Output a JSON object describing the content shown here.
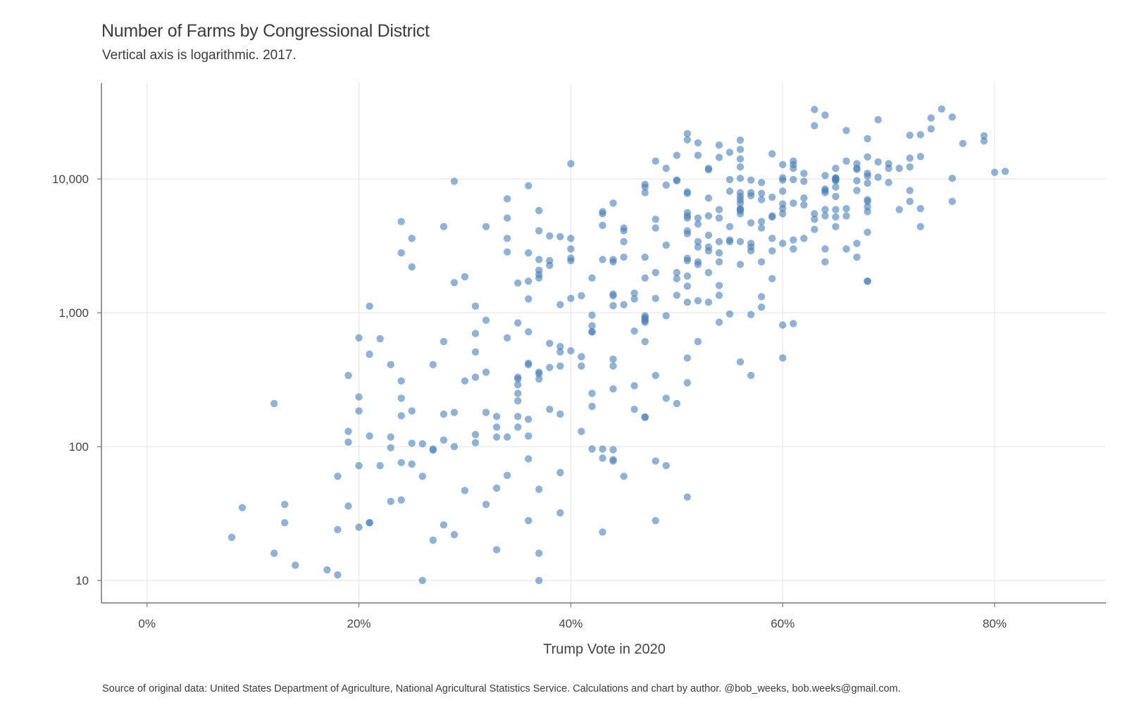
{
  "chart_data": {
    "type": "scatter",
    "title": "Number of Farms by Congressional District",
    "subtitle": "Vertical axis is logarithmic. 2017.",
    "xlabel": "Trump Vote in 2020",
    "ylabel": "",
    "caption": "Source of original data: United States Department of Agriculture, National Agricultural Statistics Service. Calculations and chart by author. @bob_weeks, bob.weeks@gmail.com.",
    "x_scale": "linear",
    "y_scale": "log",
    "xlim": [
      -0.043,
      0.905
    ],
    "ylim": [
      6.8,
      52000
    ],
    "x_ticks": [
      0,
      0.2,
      0.4,
      0.6,
      0.8
    ],
    "x_tick_labels": [
      "0%",
      "20%",
      "40%",
      "60%",
      "80%"
    ],
    "y_ticks": [
      10,
      100,
      1000,
      10000
    ],
    "y_tick_labels": [
      "10",
      "100",
      "1,000",
      "10,000"
    ],
    "grid": true,
    "legend": "none",
    "point_color": "#4a7fb5",
    "points": [
      [
        0.08,
        21
      ],
      [
        0.09,
        35
      ],
      [
        0.12,
        16
      ],
      [
        0.12,
        210
      ],
      [
        0.13,
        37
      ],
      [
        0.13,
        27
      ],
      [
        0.14,
        13
      ],
      [
        0.17,
        12
      ],
      [
        0.18,
        11
      ],
      [
        0.18,
        24
      ],
      [
        0.18,
        60
      ],
      [
        0.19,
        340
      ],
      [
        0.19,
        130
      ],
      [
        0.19,
        108
      ],
      [
        0.19,
        36
      ],
      [
        0.2,
        25
      ],
      [
        0.2,
        185
      ],
      [
        0.2,
        650
      ],
      [
        0.2,
        72
      ],
      [
        0.2,
        235
      ],
      [
        0.21,
        120
      ],
      [
        0.21,
        27
      ],
      [
        0.21,
        27
      ],
      [
        0.21,
        1120
      ],
      [
        0.21,
        490
      ],
      [
        0.22,
        640
      ],
      [
        0.22,
        72
      ],
      [
        0.23,
        39
      ],
      [
        0.23,
        410
      ],
      [
        0.23,
        118
      ],
      [
        0.23,
        98
      ],
      [
        0.24,
        310
      ],
      [
        0.24,
        230
      ],
      [
        0.24,
        2800
      ],
      [
        0.24,
        4800
      ],
      [
        0.24,
        76
      ],
      [
        0.24,
        170
      ],
      [
        0.24,
        40
      ],
      [
        0.25,
        185
      ],
      [
        0.25,
        74
      ],
      [
        0.25,
        106
      ],
      [
        0.25,
        2200
      ],
      [
        0.25,
        3600
      ],
      [
        0.26,
        60
      ],
      [
        0.26,
        105
      ],
      [
        0.26,
        10
      ],
      [
        0.27,
        410
      ],
      [
        0.27,
        94
      ],
      [
        0.27,
        96
      ],
      [
        0.27,
        20
      ],
      [
        0.28,
        610
      ],
      [
        0.28,
        26
      ],
      [
        0.28,
        112
      ],
      [
        0.28,
        175
      ],
      [
        0.28,
        4400
      ],
      [
        0.29,
        22
      ],
      [
        0.29,
        100
      ],
      [
        0.29,
        1680
      ],
      [
        0.29,
        9600
      ],
      [
        0.29,
        180
      ],
      [
        0.3,
        47
      ],
      [
        0.3,
        1860
      ],
      [
        0.3,
        310
      ],
      [
        0.31,
        1120
      ],
      [
        0.31,
        700
      ],
      [
        0.31,
        107
      ],
      [
        0.31,
        123
      ],
      [
        0.31,
        330
      ],
      [
        0.31,
        510
      ],
      [
        0.32,
        4400
      ],
      [
        0.32,
        360
      ],
      [
        0.32,
        180
      ],
      [
        0.32,
        880
      ],
      [
        0.32,
        37
      ],
      [
        0.33,
        168
      ],
      [
        0.33,
        118
      ],
      [
        0.33,
        49
      ],
      [
        0.33,
        140
      ],
      [
        0.33,
        17
      ],
      [
        0.34,
        650
      ],
      [
        0.34,
        3600
      ],
      [
        0.34,
        7100
      ],
      [
        0.34,
        2850
      ],
      [
        0.34,
        5100
      ],
      [
        0.34,
        61
      ],
      [
        0.34,
        118
      ],
      [
        0.35,
        220
      ],
      [
        0.35,
        330
      ],
      [
        0.35,
        320
      ],
      [
        0.35,
        250
      ],
      [
        0.35,
        840
      ],
      [
        0.35,
        168
      ],
      [
        0.35,
        140
      ],
      [
        0.35,
        290
      ],
      [
        0.35,
        1670
      ],
      [
        0.36,
        8900
      ],
      [
        0.36,
        720
      ],
      [
        0.36,
        160
      ],
      [
        0.36,
        28
      ],
      [
        0.36,
        1270
      ],
      [
        0.36,
        81
      ],
      [
        0.36,
        420
      ],
      [
        0.36,
        1720
      ],
      [
        0.36,
        410
      ],
      [
        0.36,
        2800
      ],
      [
        0.36,
        120
      ],
      [
        0.37,
        16
      ],
      [
        0.37,
        320
      ],
      [
        0.37,
        1820
      ],
      [
        0.37,
        2080
      ],
      [
        0.37,
        1930
      ],
      [
        0.37,
        4100
      ],
      [
        0.37,
        350
      ],
      [
        0.37,
        10
      ],
      [
        0.37,
        2500
      ],
      [
        0.37,
        5800
      ],
      [
        0.37,
        360
      ],
      [
        0.37,
        48
      ],
      [
        0.38,
        590
      ],
      [
        0.38,
        2260
      ],
      [
        0.38,
        2450
      ],
      [
        0.38,
        390
      ],
      [
        0.38,
        3750
      ],
      [
        0.38,
        190
      ],
      [
        0.39,
        1150
      ],
      [
        0.39,
        3700
      ],
      [
        0.39,
        560
      ],
      [
        0.39,
        175
      ],
      [
        0.39,
        32
      ],
      [
        0.39,
        400
      ],
      [
        0.39,
        64
      ],
      [
        0.39,
        510
      ],
      [
        0.4,
        2560
      ],
      [
        0.4,
        3600
      ],
      [
        0.4,
        2450
      ],
      [
        0.4,
        520
      ],
      [
        0.4,
        3000
      ],
      [
        0.4,
        13000
      ],
      [
        0.4,
        1280
      ],
      [
        0.41,
        1340
      ],
      [
        0.41,
        470
      ],
      [
        0.41,
        400
      ],
      [
        0.41,
        130
      ],
      [
        0.42,
        250
      ],
      [
        0.42,
        1820
      ],
      [
        0.42,
        720
      ],
      [
        0.42,
        960
      ],
      [
        0.42,
        800
      ],
      [
        0.42,
        720
      ],
      [
        0.42,
        96
      ],
      [
        0.42,
        200
      ],
      [
        0.43,
        23
      ],
      [
        0.43,
        5700
      ],
      [
        0.43,
        96
      ],
      [
        0.43,
        82
      ],
      [
        0.43,
        5500
      ],
      [
        0.43,
        4500
      ],
      [
        0.43,
        2500
      ],
      [
        0.44,
        6600
      ],
      [
        0.44,
        1380
      ],
      [
        0.44,
        1340
      ],
      [
        0.44,
        1130
      ],
      [
        0.44,
        400
      ],
      [
        0.44,
        270
      ],
      [
        0.44,
        95
      ],
      [
        0.44,
        80
      ],
      [
        0.44,
        450
      ],
      [
        0.44,
        2400
      ],
      [
        0.44,
        2500
      ],
      [
        0.44,
        78
      ],
      [
        0.45,
        2600
      ],
      [
        0.45,
        1150
      ],
      [
        0.45,
        60
      ],
      [
        0.45,
        3400
      ],
      [
        0.45,
        4100
      ],
      [
        0.45,
        4300
      ],
      [
        0.46,
        730
      ],
      [
        0.46,
        285
      ],
      [
        0.46,
        190
      ],
      [
        0.46,
        1270
      ],
      [
        0.46,
        1400
      ],
      [
        0.47,
        870
      ],
      [
        0.47,
        920
      ],
      [
        0.47,
        850
      ],
      [
        0.47,
        1820
      ],
      [
        0.47,
        9100
      ],
      [
        0.47,
        610
      ],
      [
        0.47,
        165
      ],
      [
        0.47,
        167
      ],
      [
        0.47,
        900
      ],
      [
        0.47,
        950
      ],
      [
        0.47,
        2600
      ],
      [
        0.47,
        7900
      ],
      [
        0.47,
        8700
      ],
      [
        0.48,
        4300
      ],
      [
        0.48,
        1280
      ],
      [
        0.48,
        78
      ],
      [
        0.48,
        2000
      ],
      [
        0.48,
        340
      ],
      [
        0.48,
        28
      ],
      [
        0.48,
        5000
      ],
      [
        0.48,
        13600
      ],
      [
        0.49,
        9000
      ],
      [
        0.49,
        3200
      ],
      [
        0.49,
        72
      ],
      [
        0.49,
        230
      ],
      [
        0.49,
        12000
      ],
      [
        0.49,
        950
      ],
      [
        0.5,
        210
      ],
      [
        0.5,
        2000
      ],
      [
        0.5,
        1800
      ],
      [
        0.5,
        1350
      ],
      [
        0.5,
        15000
      ],
      [
        0.5,
        9700
      ],
      [
        0.5,
        9800
      ],
      [
        0.51,
        2550
      ],
      [
        0.51,
        7800
      ],
      [
        0.51,
        8000
      ],
      [
        0.51,
        21800
      ],
      [
        0.51,
        5600
      ],
      [
        0.51,
        5100
      ],
      [
        0.51,
        3900
      ],
      [
        0.51,
        1200
      ],
      [
        0.51,
        1580
      ],
      [
        0.51,
        2450
      ],
      [
        0.51,
        19600
      ],
      [
        0.51,
        5300
      ],
      [
        0.51,
        4100
      ],
      [
        0.51,
        1880
      ],
      [
        0.51,
        42
      ],
      [
        0.51,
        300
      ],
      [
        0.51,
        460
      ],
      [
        0.52,
        15000
      ],
      [
        0.52,
        18600
      ],
      [
        0.52,
        3100
      ],
      [
        0.52,
        3400
      ],
      [
        0.52,
        1230
      ],
      [
        0.52,
        610
      ],
      [
        0.52,
        4600
      ],
      [
        0.52,
        2300
      ],
      [
        0.52,
        2400
      ],
      [
        0.52,
        5100
      ],
      [
        0.53,
        12000
      ],
      [
        0.53,
        11700
      ],
      [
        0.53,
        5300
      ],
      [
        0.53,
        3100
      ],
      [
        0.53,
        2900
      ],
      [
        0.53,
        1200
      ],
      [
        0.53,
        3800
      ],
      [
        0.53,
        7200
      ],
      [
        0.53,
        2000
      ],
      [
        0.54,
        2400
      ],
      [
        0.54,
        1600
      ],
      [
        0.54,
        1350
      ],
      [
        0.54,
        3400
      ],
      [
        0.54,
        2800
      ],
      [
        0.54,
        17900
      ],
      [
        0.54,
        14500
      ],
      [
        0.54,
        5900
      ],
      [
        0.54,
        5100
      ],
      [
        0.54,
        850
      ],
      [
        0.55,
        15800
      ],
      [
        0.55,
        9900
      ],
      [
        0.55,
        4400
      ],
      [
        0.55,
        3400
      ],
      [
        0.55,
        3500
      ],
      [
        0.55,
        980
      ],
      [
        0.55,
        8100
      ],
      [
        0.56,
        14100
      ],
      [
        0.56,
        5800
      ],
      [
        0.56,
        5900
      ],
      [
        0.56,
        2300
      ],
      [
        0.56,
        6000
      ],
      [
        0.56,
        5500
      ],
      [
        0.56,
        6600
      ],
      [
        0.56,
        7000
      ],
      [
        0.56,
        19500
      ],
      [
        0.56,
        10100
      ],
      [
        0.56,
        12300
      ],
      [
        0.56,
        3400
      ],
      [
        0.56,
        7900
      ],
      [
        0.56,
        430
      ],
      [
        0.56,
        7400
      ],
      [
        0.56,
        16600
      ],
      [
        0.57,
        3300
      ],
      [
        0.57,
        7900
      ],
      [
        0.57,
        9800
      ],
      [
        0.57,
        7500
      ],
      [
        0.57,
        4700
      ],
      [
        0.57,
        3100
      ],
      [
        0.57,
        970
      ],
      [
        0.57,
        2900
      ],
      [
        0.57,
        340
      ],
      [
        0.58,
        7800
      ],
      [
        0.58,
        4800
      ],
      [
        0.58,
        9400
      ],
      [
        0.58,
        7000
      ],
      [
        0.58,
        1320
      ],
      [
        0.58,
        4300
      ],
      [
        0.58,
        1100
      ],
      [
        0.58,
        2400
      ],
      [
        0.59,
        5300
      ],
      [
        0.59,
        3600
      ],
      [
        0.59,
        5200
      ],
      [
        0.59,
        2900
      ],
      [
        0.59,
        15400
      ],
      [
        0.59,
        7300
      ],
      [
        0.59,
        1800
      ],
      [
        0.6,
        10200
      ],
      [
        0.6,
        8100
      ],
      [
        0.6,
        9800
      ],
      [
        0.6,
        5500
      ],
      [
        0.6,
        460
      ],
      [
        0.6,
        810
      ],
      [
        0.6,
        3300
      ],
      [
        0.6,
        6500
      ],
      [
        0.6,
        6000
      ],
      [
        0.6,
        12800
      ],
      [
        0.61,
        3500
      ],
      [
        0.61,
        13600
      ],
      [
        0.61,
        12800
      ],
      [
        0.61,
        6600
      ],
      [
        0.61,
        3000
      ],
      [
        0.61,
        12000
      ],
      [
        0.61,
        9900
      ],
      [
        0.61,
        830
      ],
      [
        0.62,
        7200
      ],
      [
        0.62,
        11000
      ],
      [
        0.62,
        9600
      ],
      [
        0.62,
        6400
      ],
      [
        0.62,
        3600
      ],
      [
        0.63,
        33000
      ],
      [
        0.63,
        25000
      ],
      [
        0.63,
        4200
      ],
      [
        0.63,
        5000
      ],
      [
        0.63,
        5500
      ],
      [
        0.64,
        30000
      ],
      [
        0.64,
        10600
      ],
      [
        0.64,
        8400
      ],
      [
        0.64,
        8200
      ],
      [
        0.64,
        3000
      ],
      [
        0.64,
        2400
      ],
      [
        0.64,
        5900
      ],
      [
        0.64,
        5300
      ],
      [
        0.64,
        7900
      ],
      [
        0.65,
        9800
      ],
      [
        0.65,
        10100
      ],
      [
        0.65,
        12000
      ],
      [
        0.65,
        10000
      ],
      [
        0.65,
        9700
      ],
      [
        0.65,
        5200
      ],
      [
        0.65,
        7400
      ],
      [
        0.65,
        5900
      ],
      [
        0.65,
        8700
      ],
      [
        0.65,
        10200
      ],
      [
        0.65,
        4400
      ],
      [
        0.66,
        13600
      ],
      [
        0.66,
        5300
      ],
      [
        0.66,
        6000
      ],
      [
        0.66,
        3000
      ],
      [
        0.66,
        23000
      ],
      [
        0.67,
        13000
      ],
      [
        0.67,
        12000
      ],
      [
        0.67,
        11800
      ],
      [
        0.67,
        9700
      ],
      [
        0.67,
        8200
      ],
      [
        0.67,
        2600
      ],
      [
        0.67,
        3300
      ],
      [
        0.68,
        11000
      ],
      [
        0.68,
        10500
      ],
      [
        0.68,
        7000
      ],
      [
        0.68,
        14600
      ],
      [
        0.68,
        20000
      ],
      [
        0.68,
        4000
      ],
      [
        0.68,
        1720
      ],
      [
        0.68,
        1720
      ],
      [
        0.68,
        9300
      ],
      [
        0.68,
        6800
      ],
      [
        0.68,
        5700
      ],
      [
        0.68,
        6200
      ],
      [
        0.69,
        10300
      ],
      [
        0.69,
        13400
      ],
      [
        0.69,
        27700
      ],
      [
        0.7,
        13000
      ],
      [
        0.7,
        12000
      ],
      [
        0.7,
        9400
      ],
      [
        0.71,
        5900
      ],
      [
        0.71,
        12000
      ],
      [
        0.72,
        8200
      ],
      [
        0.72,
        6800
      ],
      [
        0.72,
        21200
      ],
      [
        0.72,
        14300
      ],
      [
        0.72,
        12300
      ],
      [
        0.73,
        14700
      ],
      [
        0.73,
        21400
      ],
      [
        0.73,
        6000
      ],
      [
        0.73,
        4400
      ],
      [
        0.74,
        23700
      ],
      [
        0.74,
        28500
      ],
      [
        0.75,
        33300
      ],
      [
        0.76,
        29000
      ],
      [
        0.76,
        10100
      ],
      [
        0.76,
        6800
      ],
      [
        0.77,
        18400
      ],
      [
        0.79,
        21000
      ],
      [
        0.79,
        19200
      ],
      [
        0.8,
        11200
      ],
      [
        0.81,
        11400
      ]
    ]
  }
}
